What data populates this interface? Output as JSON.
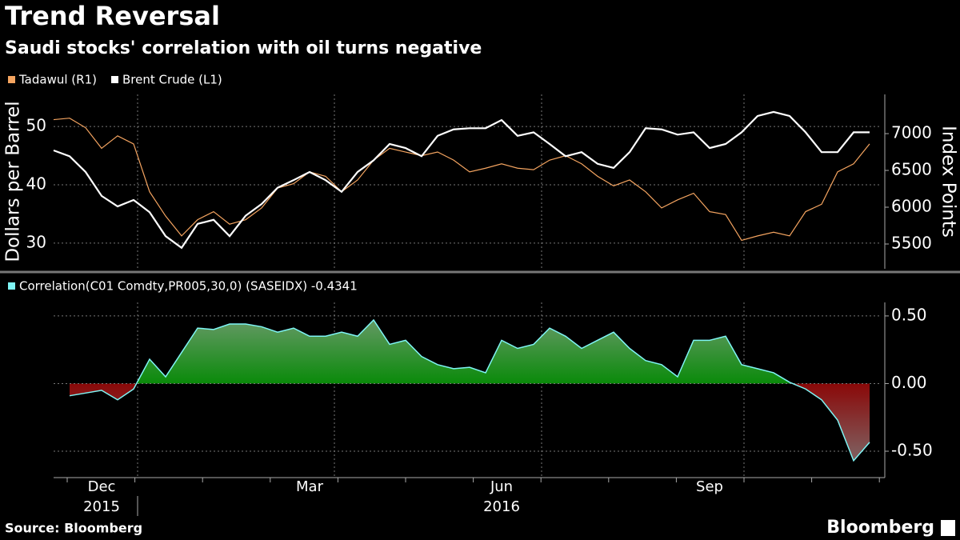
{
  "title": "Trend Reversal",
  "subtitle": "Saudi stocks' correlation with oil turns negative",
  "source": "Source: Bloomberg",
  "brand": "Bloomberg",
  "chart_data": [
    {
      "type": "line",
      "ylabel": "Dollars per Barrel",
      "y2label": "Index Points",
      "ylim": [
        25.6,
        55.5
      ],
      "yticks": [
        30,
        40,
        50
      ],
      "y2lim": [
        5163,
        7533
      ],
      "y2ticks": [
        5500,
        6000,
        6500,
        7000
      ],
      "grid": true,
      "series": [
        {
          "name": "Tadawul (R1)",
          "color": "#f4a460",
          "axis": "y2",
          "values": [
            7190,
            7210,
            7080,
            6800,
            6970,
            6860,
            6210,
            5880,
            5610,
            5830,
            5940,
            5770,
            5830,
            5990,
            6260,
            6320,
            6480,
            6420,
            6210,
            6370,
            6640,
            6800,
            6750,
            6700,
            6750,
            6640,
            6480,
            6530,
            6590,
            6530,
            6510,
            6640,
            6700,
            6590,
            6420,
            6290,
            6370,
            6210,
            5990,
            6100,
            6190,
            5940,
            5900,
            5550,
            5610,
            5660,
            5610,
            5940,
            6040,
            6480,
            6590,
            6860
          ]
        },
        {
          "name": "Brent Crude (L1)",
          "color": "#ffffff",
          "values": [
            45.9,
            44.9,
            42.2,
            38.1,
            36.3,
            37.4,
            35.3,
            31.2,
            29.2,
            33.3,
            34.0,
            31.2,
            34.7,
            36.7,
            39.5,
            40.8,
            42.2,
            40.8,
            38.8,
            42.2,
            44.2,
            47.0,
            46.3,
            44.9,
            48.4,
            49.5,
            49.7,
            49.7,
            51.1,
            48.4,
            49.0,
            47.0,
            44.9,
            45.6,
            43.6,
            42.9,
            45.6,
            49.7,
            49.5,
            48.6,
            49.0,
            46.3,
            47.0,
            49.0,
            51.8,
            52.5,
            51.8,
            49.0,
            45.6,
            45.6,
            49.0,
            49.0
          ]
        }
      ]
    },
    {
      "type": "area",
      "categories": [
        null,
        null,
        null,
        "Dec",
        null,
        null,
        null,
        null,
        null,
        null,
        null,
        null,
        null,
        null,
        null,
        null,
        "Mar",
        null,
        null,
        null,
        null,
        null,
        null,
        null,
        null,
        null,
        null,
        null,
        "Jun",
        null,
        null,
        null,
        null,
        null,
        null,
        null,
        null,
        null,
        null,
        null,
        null,
        "Sep",
        null,
        null,
        null,
        null,
        null,
        null,
        null,
        null,
        null,
        null
      ],
      "year_labels": [
        null,
        null,
        null,
        "2015",
        null,
        null,
        null,
        null,
        null,
        null,
        null,
        null,
        null,
        null,
        null,
        null,
        null,
        null,
        null,
        null,
        null,
        null,
        null,
        null,
        null,
        null,
        null,
        null,
        "2016",
        null,
        null,
        null,
        null,
        null,
        null,
        null,
        null,
        null,
        null,
        null,
        null,
        null,
        null,
        null,
        null,
        null,
        null,
        null,
        null,
        null,
        null,
        null
      ],
      "ylim": [
        -0.695,
        0.6
      ],
      "yticks": [
        {
          "value": 0.5,
          "label": "0.50"
        },
        {
          "value": 0,
          "label": "0.00"
        },
        {
          "value": -0.5,
          "label": "-0.50"
        }
      ],
      "grid": true,
      "series": [
        {
          "name": "Correlation(C01 Comdty,PR005,30,0) (SASEIDX) -0.4341",
          "color": "#7ff5f5",
          "values": [
            null,
            -0.09,
            -0.07,
            -0.05,
            -0.12,
            -0.04,
            0.18,
            0.05,
            0.23,
            0.41,
            0.4,
            0.44,
            0.44,
            0.42,
            0.38,
            0.41,
            0.35,
            0.35,
            0.38,
            0.35,
            0.47,
            0.29,
            0.32,
            0.2,
            0.14,
            0.11,
            0.12,
            0.08,
            0.32,
            0.26,
            0.29,
            0.41,
            0.35,
            0.26,
            0.32,
            0.38,
            0.26,
            0.17,
            0.14,
            0.05,
            0.32,
            0.32,
            0.35,
            0.14,
            0.11,
            0.08,
            0.01,
            -0.04,
            -0.12,
            -0.27,
            -0.57,
            -0.4341
          ]
        }
      ]
    }
  ]
}
